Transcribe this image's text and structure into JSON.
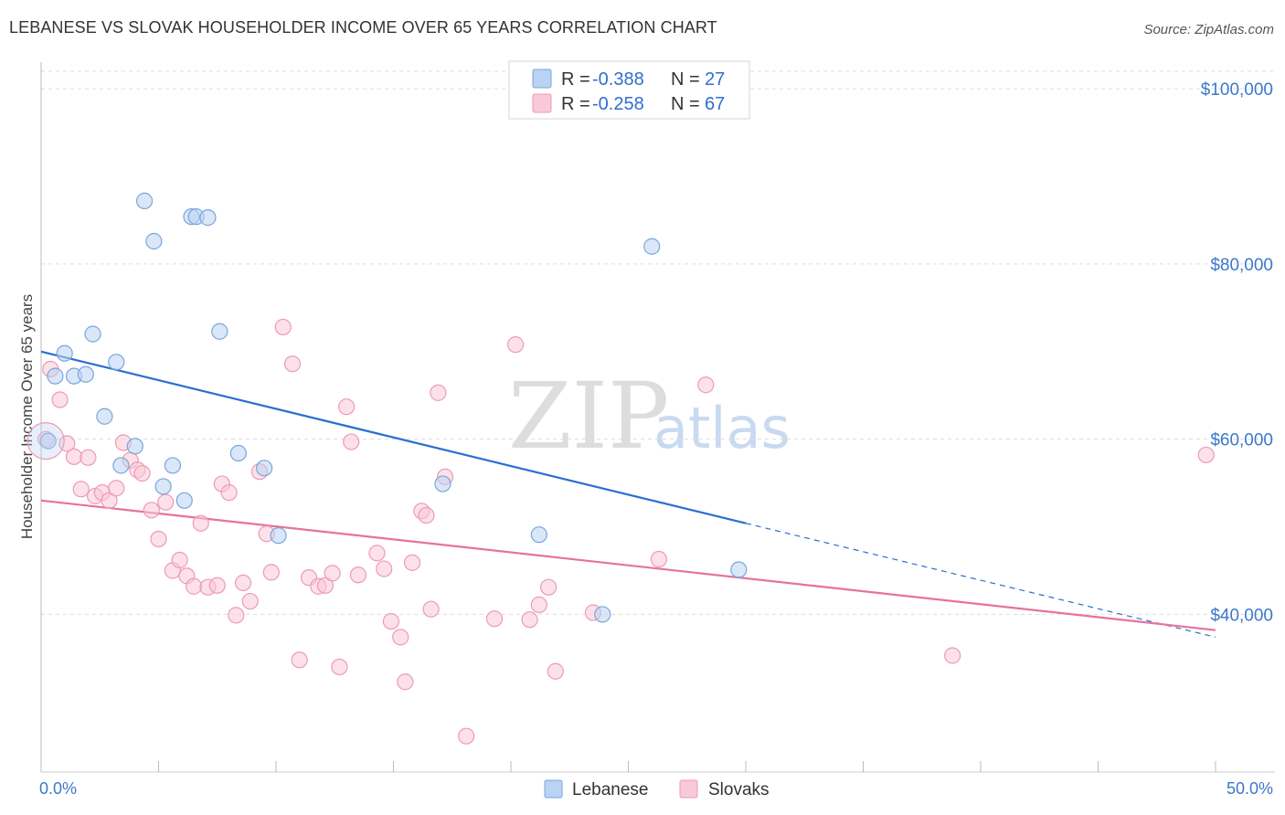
{
  "header": {
    "title": "LEBANESE VS SLOVAK HOUSEHOLDER INCOME OVER 65 YEARS CORRELATION CHART",
    "source": "Source: ZipAtlas.com"
  },
  "watermark": {
    "zip": "ZIP",
    "atlas": "atlas"
  },
  "legend": {
    "r_label": "R =",
    "n_label": "N =",
    "rows": [
      {
        "r": "-0.388",
        "n": "27",
        "color": "#a8c8f0"
      },
      {
        "r": "-0.258",
        "n": "67",
        "color": "#f7b8cc"
      }
    ]
  },
  "bottom_legend": [
    {
      "label": "Lebanese",
      "color": "#a8c8f0"
    },
    {
      "label": "Slovaks",
      "color": "#f7b8cc"
    }
  ],
  "colors": {
    "lebanese_point_fill": "#b9d3f2",
    "lebanese_point_stroke": "#7aa5dd",
    "lebanese_line": "#2a6fd0",
    "slovak_point_fill": "#f9c9d7",
    "slovak_point_stroke": "#ee9ab5",
    "slovak_line": "#e8719a",
    "grid": "#dddddd",
    "tick_label": "#3d78c9"
  },
  "chart_data": {
    "type": "scatter",
    "title": "LEBANESE VS SLOVAK HOUSEHOLDER INCOME OVER 65 YEARS CORRELATION CHART",
    "xlabel": "",
    "ylabel": "Householder Income Over 65 years",
    "xlim": [
      0,
      50
    ],
    "ylim": [
      22000,
      102000
    ],
    "x_tick_labels": [
      "0.0%",
      "50.0%"
    ],
    "y_ticks": [
      40000,
      60000,
      80000,
      100000
    ],
    "y_tick_labels": [
      "$40,000",
      "$60,000",
      "$80,000",
      "$100,000"
    ],
    "grid": true,
    "legend_position": "top-center",
    "series": [
      {
        "name": "Lebanese",
        "r": -0.388,
        "n": 27,
        "trend": {
          "x0": 0,
          "y0": 70000,
          "x1": 30,
          "y1": 50400,
          "dashed_to_x": 50,
          "dashed_to_y": 37400
        },
        "points": [
          [
            0.3,
            59800
          ],
          [
            0.6,
            67200
          ],
          [
            1.0,
            69800
          ],
          [
            1.4,
            67200
          ],
          [
            1.9,
            67400
          ],
          [
            2.2,
            72000
          ],
          [
            2.7,
            62600
          ],
          [
            3.2,
            68800
          ],
          [
            3.4,
            57000
          ],
          [
            4.0,
            59200
          ],
          [
            4.4,
            87200
          ],
          [
            4.8,
            82600
          ],
          [
            5.2,
            54600
          ],
          [
            5.6,
            57000
          ],
          [
            6.1,
            53000
          ],
          [
            6.4,
            85400
          ],
          [
            6.6,
            85400
          ],
          [
            7.1,
            85300
          ],
          [
            7.6,
            72300
          ],
          [
            8.4,
            58400
          ],
          [
            9.5,
            56700
          ],
          [
            10.1,
            49000
          ],
          [
            17.1,
            54900
          ],
          [
            21.2,
            49100
          ],
          [
            23.9,
            40000
          ],
          [
            29.7,
            45100
          ],
          [
            26.0,
            82000
          ]
        ]
      },
      {
        "name": "Slovaks",
        "r": -0.258,
        "n": 67,
        "trend": {
          "x0": 0,
          "y0": 53000,
          "x1": 50,
          "y1": 38200
        },
        "points": [
          [
            0.4,
            68000
          ],
          [
            0.8,
            64500
          ],
          [
            1.1,
            59500
          ],
          [
            1.4,
            58000
          ],
          [
            1.7,
            54300
          ],
          [
            2.0,
            57900
          ],
          [
            2.3,
            53500
          ],
          [
            2.6,
            53900
          ],
          [
            2.9,
            53000
          ],
          [
            3.2,
            54400
          ],
          [
            3.5,
            59600
          ],
          [
            3.8,
            57600
          ],
          [
            4.1,
            56500
          ],
          [
            4.3,
            56100
          ],
          [
            4.7,
            51900
          ],
          [
            5.0,
            48600
          ],
          [
            5.3,
            52800
          ],
          [
            5.6,
            45000
          ],
          [
            5.9,
            46200
          ],
          [
            6.2,
            44400
          ],
          [
            6.5,
            43200
          ],
          [
            6.8,
            50400
          ],
          [
            7.1,
            43100
          ],
          [
            7.5,
            43300
          ],
          [
            7.7,
            54900
          ],
          [
            8.0,
            53900
          ],
          [
            8.3,
            39900
          ],
          [
            8.6,
            43600
          ],
          [
            8.9,
            41500
          ],
          [
            9.3,
            56300
          ],
          [
            9.6,
            49200
          ],
          [
            9.8,
            44800
          ],
          [
            10.3,
            72800
          ],
          [
            10.7,
            68600
          ],
          [
            11.0,
            34800
          ],
          [
            11.4,
            44200
          ],
          [
            11.8,
            43200
          ],
          [
            12.1,
            43300
          ],
          [
            12.4,
            44700
          ],
          [
            12.7,
            34000
          ],
          [
            13.0,
            63700
          ],
          [
            13.2,
            59700
          ],
          [
            13.5,
            44500
          ],
          [
            14.3,
            47000
          ],
          [
            14.6,
            45200
          ],
          [
            14.9,
            39200
          ],
          [
            15.3,
            37400
          ],
          [
            15.5,
            32300
          ],
          [
            15.8,
            45900
          ],
          [
            16.2,
            51800
          ],
          [
            16.4,
            51300
          ],
          [
            16.6,
            40600
          ],
          [
            16.9,
            65300
          ],
          [
            17.2,
            55700
          ],
          [
            18.1,
            26100
          ],
          [
            19.3,
            39500
          ],
          [
            20.2,
            70800
          ],
          [
            20.8,
            39400
          ],
          [
            21.2,
            41100
          ],
          [
            21.6,
            43100
          ],
          [
            21.9,
            33500
          ],
          [
            23.5,
            40200
          ],
          [
            26.3,
            46300
          ],
          [
            28.3,
            66200
          ],
          [
            38.8,
            35300
          ],
          [
            49.6,
            58200
          ],
          [
            0.2,
            60000
          ]
        ]
      }
    ]
  }
}
